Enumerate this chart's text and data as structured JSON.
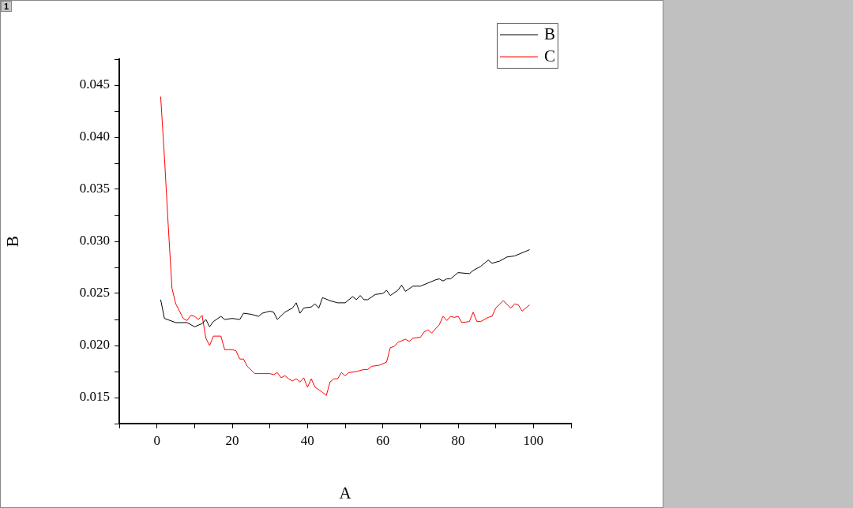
{
  "chart_data": {
    "type": "line",
    "xlabel": "A",
    "ylabel": "B",
    "legend": "top right",
    "marker": "none",
    "line_style": "solid",
    "grid": false,
    "annotations": [
      "1"
    ],
    "xlim": [
      -10,
      110
    ],
    "xticks": [
      {
        "value": -10,
        "label": null
      },
      0,
      {
        "value": 10,
        "label": null
      },
      20,
      {
        "value": 30,
        "label": null
      },
      40,
      {
        "value": 50,
        "label": null
      },
      60,
      {
        "value": 70,
        "label": null
      },
      80,
      {
        "value": 90,
        "label": null
      },
      100,
      {
        "value": 110,
        "label": null
      }
    ],
    "ylim": [
      0.0125,
      0.0475
    ],
    "yticks": [
      {
        "value": 0.0125,
        "label": null
      },
      0.015,
      {
        "value": 0.0175,
        "label": null
      },
      {
        "value": 0.02,
        "label": "0.020"
      },
      {
        "value": 0.0225,
        "label": null
      },
      0.025,
      {
        "value": 0.0275,
        "label": null
      },
      {
        "value": 0.03,
        "label": "0.030"
      },
      {
        "value": 0.0325,
        "label": null
      },
      0.035,
      {
        "value": 0.0375,
        "label": null
      },
      {
        "value": 0.04,
        "label": "0.040"
      },
      {
        "value": 0.0425,
        "label": null
      },
      0.045,
      {
        "value": 0.0475,
        "label": null
      }
    ],
    "series": [
      {
        "name": "B",
        "color": "#000000",
        "x": [
          1,
          2,
          5,
          8,
          10,
          12,
          13,
          14,
          15,
          17,
          18,
          20,
          22,
          23,
          25,
          27,
          28,
          30,
          31,
          32,
          34,
          36,
          37,
          38,
          39,
          41,
          42,
          43,
          44,
          46,
          48,
          50,
          52,
          53,
          54,
          55,
          56,
          58,
          60,
          61,
          62,
          64,
          65,
          66,
          68,
          70,
          72,
          74,
          75,
          76,
          77,
          78,
          80,
          83,
          84,
          86,
          88,
          89,
          91,
          93,
          95,
          97,
          99
        ],
        "values": [
          0.0244,
          0.0226,
          0.0222,
          0.0222,
          0.0218,
          0.0221,
          0.0225,
          0.0218,
          0.0223,
          0.0228,
          0.0225,
          0.0226,
          0.0225,
          0.0231,
          0.023,
          0.0228,
          0.0231,
          0.0233,
          0.0232,
          0.0225,
          0.0232,
          0.0236,
          0.0241,
          0.0231,
          0.0236,
          0.0237,
          0.024,
          0.0236,
          0.0246,
          0.0243,
          0.0241,
          0.0241,
          0.0247,
          0.0244,
          0.0248,
          0.0244,
          0.0244,
          0.0249,
          0.025,
          0.0253,
          0.0248,
          0.0253,
          0.0258,
          0.0252,
          0.0257,
          0.0257,
          0.026,
          0.0263,
          0.0264,
          0.0262,
          0.0264,
          0.0264,
          0.027,
          0.0269,
          0.0272,
          0.0276,
          0.0282,
          0.0279,
          0.0281,
          0.0285,
          0.0286,
          0.0289,
          0.0292
        ]
      },
      {
        "name": "C",
        "color": "#ff0000",
        "x": [
          1,
          2,
          3,
          4,
          5,
          6,
          7,
          8,
          9,
          10,
          11,
          12,
          13,
          14,
          15,
          17,
          18,
          20,
          21,
          22,
          23,
          24,
          26,
          28,
          30,
          31,
          32,
          33,
          34,
          35,
          36,
          37,
          38,
          39,
          40,
          41,
          42,
          44,
          45,
          46,
          47,
          48,
          49,
          50,
          51,
          53,
          55,
          56,
          57,
          59,
          61,
          62,
          63,
          64,
          66,
          67,
          68,
          70,
          71,
          72,
          73,
          75,
          76,
          77,
          78,
          79,
          80,
          81,
          83,
          84,
          85,
          86,
          88,
          89,
          90,
          92,
          94,
          95,
          96,
          97,
          99
        ],
        "values": [
          0.0439,
          0.0381,
          0.0316,
          0.0255,
          0.024,
          0.0233,
          0.0226,
          0.0224,
          0.0229,
          0.0228,
          0.0225,
          0.0229,
          0.0207,
          0.02,
          0.0209,
          0.0209,
          0.0196,
          0.0196,
          0.0195,
          0.0187,
          0.0187,
          0.018,
          0.0173,
          0.0173,
          0.0173,
          0.0172,
          0.0174,
          0.0169,
          0.0171,
          0.0168,
          0.0166,
          0.0168,
          0.0165,
          0.0169,
          0.016,
          0.0168,
          0.016,
          0.0155,
          0.0152,
          0.0165,
          0.0168,
          0.0168,
          0.0174,
          0.0171,
          0.0174,
          0.0175,
          0.0177,
          0.0177,
          0.018,
          0.0181,
          0.0184,
          0.0198,
          0.0199,
          0.0203,
          0.0206,
          0.0204,
          0.0207,
          0.0208,
          0.0213,
          0.0215,
          0.0212,
          0.022,
          0.0228,
          0.0224,
          0.0228,
          0.0227,
          0.0228,
          0.0222,
          0.0223,
          0.0232,
          0.0223,
          0.0223,
          0.0227,
          0.0228,
          0.0236,
          0.0243,
          0.0236,
          0.024,
          0.0239,
          0.0233,
          0.0239
        ]
      }
    ]
  }
}
